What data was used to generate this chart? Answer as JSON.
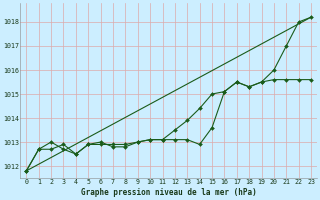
{
  "title": "Graphe pression niveau de la mer (hPa)",
  "bg_color": "#cceeff",
  "grid_color": "#ddaaaa",
  "line_color": "#1a5c1a",
  "marker_color": "#1a5c1a",
  "xlim": [
    -0.5,
    23.5
  ],
  "ylim": [
    1011.5,
    1018.8
  ],
  "yticks": [
    1012,
    1013,
    1014,
    1015,
    1016,
    1017,
    1018
  ],
  "xticks": [
    0,
    1,
    2,
    3,
    4,
    5,
    6,
    7,
    8,
    9,
    10,
    11,
    12,
    13,
    14,
    15,
    16,
    17,
    18,
    19,
    20,
    21,
    22,
    23
  ],
  "series1": [
    1011.8,
    1012.7,
    1012.7,
    1012.9,
    1012.5,
    1012.9,
    1012.9,
    1012.9,
    1012.9,
    1013.0,
    1013.1,
    1013.1,
    1013.1,
    1013.1,
    1012.9,
    1013.6,
    1015.1,
    1015.5,
    1015.3,
    1015.5,
    1016.0,
    1017.0,
    1018.0,
    1018.2
  ],
  "series2": [
    1011.8,
    1012.7,
    1013.0,
    1012.7,
    1012.5,
    1012.9,
    1013.0,
    1012.8,
    1012.8,
    1013.0,
    1013.1,
    1013.1,
    1013.5,
    1013.9,
    1014.4,
    1015.0,
    1015.1,
    1015.5,
    1015.3,
    1015.5,
    1015.6,
    1015.6,
    1015.6,
    1015.6
  ],
  "series3_x": [
    0,
    23
  ],
  "series3_y": [
    1011.8,
    1018.2
  ],
  "label_fontsize": 5.5,
  "tick_fontsize": 4.8,
  "linewidth": 0.8,
  "markersize": 2.0
}
